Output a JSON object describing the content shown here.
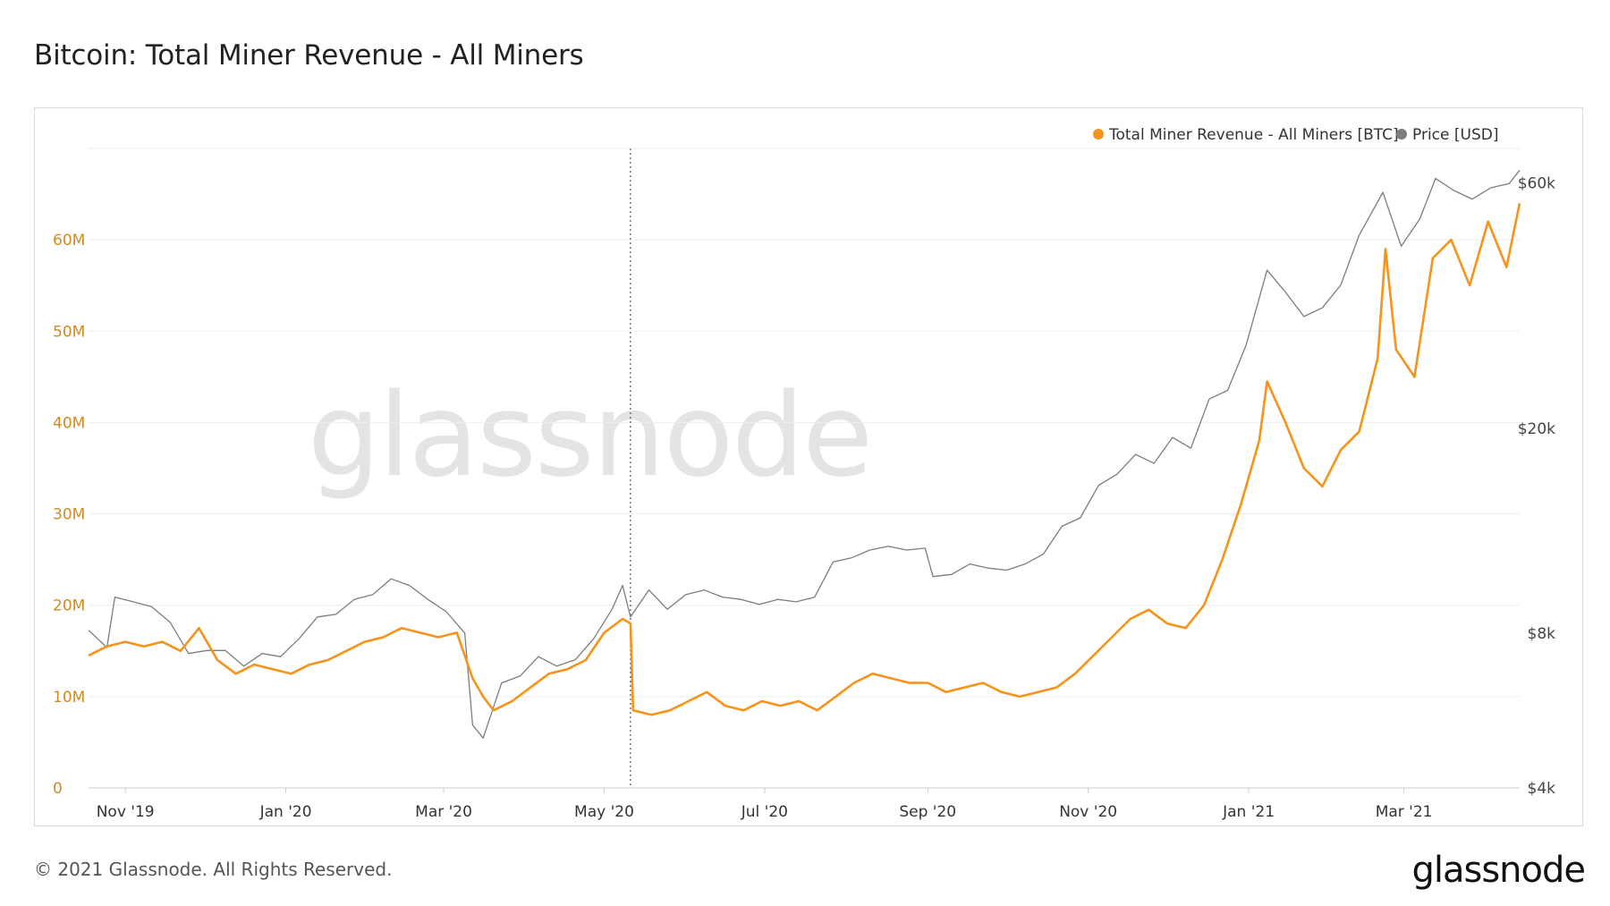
{
  "page": {
    "title": "Bitcoin: Total Miner Revenue - All Miners",
    "watermark": "glassnode",
    "footer_copyright": "© 2021 Glassnode. All Rights Reserved.",
    "footer_logo": "glassnode"
  },
  "colors": {
    "revenue": "#f7931a",
    "price": "#7d7d7d",
    "left_axis_text": "#d48a1e",
    "right_axis_text": "#444444",
    "grid": "#eeeeee",
    "watermark": "#e4e4e4"
  },
  "chart_data": {
    "type": "line",
    "title": "Bitcoin: Total Miner Revenue - All Miners",
    "legend_position": "top-right",
    "grid": true,
    "x_type": "date",
    "x_range": [
      "2019-10-18",
      "2021-04-14"
    ],
    "x_ticks": [
      {
        "date": "2019-11-01",
        "label": "Nov '19"
      },
      {
        "date": "2020-01-01",
        "label": "Jan '20"
      },
      {
        "date": "2020-03-01",
        "label": "Mar '20"
      },
      {
        "date": "2020-05-01",
        "label": "May '20"
      },
      {
        "date": "2020-07-01",
        "label": "Jul '20"
      },
      {
        "date": "2020-09-01",
        "label": "Sep '20"
      },
      {
        "date": "2020-11-01",
        "label": "Nov '20"
      },
      {
        "date": "2021-01-01",
        "label": "Jan '21"
      },
      {
        "date": "2021-03-01",
        "label": "Mar '21"
      }
    ],
    "y_left": {
      "scale": "linear",
      "range": [
        0,
        70000000
      ],
      "ticks": [
        {
          "value": 0,
          "label": "0"
        },
        {
          "value": 10000000,
          "label": "10M"
        },
        {
          "value": 20000000,
          "label": "20M"
        },
        {
          "value": 30000000,
          "label": "30M"
        },
        {
          "value": 40000000,
          "label": "40M"
        },
        {
          "value": 50000000,
          "label": "50M"
        },
        {
          "value": 60000000,
          "label": "60M"
        }
      ]
    },
    "y_right": {
      "scale": "log",
      "range": [
        4000,
        70000
      ],
      "ticks": [
        {
          "value": 4000,
          "label": "$4k"
        },
        {
          "value": 8000,
          "label": "$8k"
        },
        {
          "value": 20000,
          "label": "$20k"
        },
        {
          "value": 60000,
          "label": "$60k"
        }
      ]
    },
    "annotation": {
      "type": "vertical-dotted-line",
      "date": "2020-05-11"
    },
    "series": [
      {
        "name": "Total Miner Revenue - All Miners [BTC]",
        "axis": "left",
        "points": [
          [
            "2019-10-18",
            14500000
          ],
          [
            "2019-10-25",
            15500000
          ],
          [
            "2019-11-01",
            16000000
          ],
          [
            "2019-11-08",
            15500000
          ],
          [
            "2019-11-15",
            16000000
          ],
          [
            "2019-11-22",
            15000000
          ],
          [
            "2019-11-29",
            17500000
          ],
          [
            "2019-12-06",
            14000000
          ],
          [
            "2019-12-13",
            12500000
          ],
          [
            "2019-12-20",
            13500000
          ],
          [
            "2019-12-27",
            13000000
          ],
          [
            "2020-01-03",
            12500000
          ],
          [
            "2020-01-10",
            13500000
          ],
          [
            "2020-01-17",
            14000000
          ],
          [
            "2020-01-24",
            15000000
          ],
          [
            "2020-01-31",
            16000000
          ],
          [
            "2020-02-07",
            16500000
          ],
          [
            "2020-02-14",
            17500000
          ],
          [
            "2020-02-21",
            17000000
          ],
          [
            "2020-02-28",
            16500000
          ],
          [
            "2020-03-06",
            17000000
          ],
          [
            "2020-03-12",
            12000000
          ],
          [
            "2020-03-16",
            10000000
          ],
          [
            "2020-03-20",
            8500000
          ],
          [
            "2020-03-27",
            9500000
          ],
          [
            "2020-04-03",
            11000000
          ],
          [
            "2020-04-10",
            12500000
          ],
          [
            "2020-04-17",
            13000000
          ],
          [
            "2020-04-24",
            14000000
          ],
          [
            "2020-05-01",
            17000000
          ],
          [
            "2020-05-08",
            18500000
          ],
          [
            "2020-05-11",
            18000000
          ],
          [
            "2020-05-12",
            8500000
          ],
          [
            "2020-05-19",
            8000000
          ],
          [
            "2020-05-26",
            8500000
          ],
          [
            "2020-06-02",
            9500000
          ],
          [
            "2020-06-09",
            10500000
          ],
          [
            "2020-06-16",
            9000000
          ],
          [
            "2020-06-23",
            8500000
          ],
          [
            "2020-06-30",
            9500000
          ],
          [
            "2020-07-07",
            9000000
          ],
          [
            "2020-07-14",
            9500000
          ],
          [
            "2020-07-21",
            8500000
          ],
          [
            "2020-07-28",
            10000000
          ],
          [
            "2020-08-04",
            11500000
          ],
          [
            "2020-08-11",
            12500000
          ],
          [
            "2020-08-18",
            12000000
          ],
          [
            "2020-08-25",
            11500000
          ],
          [
            "2020-09-01",
            11500000
          ],
          [
            "2020-09-08",
            10500000
          ],
          [
            "2020-09-15",
            11000000
          ],
          [
            "2020-09-22",
            11500000
          ],
          [
            "2020-09-29",
            10500000
          ],
          [
            "2020-10-06",
            10000000
          ],
          [
            "2020-10-13",
            10500000
          ],
          [
            "2020-10-20",
            11000000
          ],
          [
            "2020-10-27",
            12500000
          ],
          [
            "2020-11-03",
            14500000
          ],
          [
            "2020-11-10",
            16500000
          ],
          [
            "2020-11-17",
            18500000
          ],
          [
            "2020-11-24",
            19500000
          ],
          [
            "2020-12-01",
            18000000
          ],
          [
            "2020-12-08",
            17500000
          ],
          [
            "2020-12-15",
            20000000
          ],
          [
            "2020-12-22",
            25000000
          ],
          [
            "2020-12-29",
            31000000
          ],
          [
            "2021-01-05",
            38000000
          ],
          [
            "2021-01-08",
            44500000
          ],
          [
            "2021-01-15",
            40000000
          ],
          [
            "2021-01-22",
            35000000
          ],
          [
            "2021-01-29",
            33000000
          ],
          [
            "2021-02-05",
            37000000
          ],
          [
            "2021-02-12",
            39000000
          ],
          [
            "2021-02-19",
            47000000
          ],
          [
            "2021-02-22",
            59000000
          ],
          [
            "2021-02-26",
            48000000
          ],
          [
            "2021-03-05",
            45000000
          ],
          [
            "2021-03-12",
            58000000
          ],
          [
            "2021-03-19",
            60000000
          ],
          [
            "2021-03-26",
            55000000
          ],
          [
            "2021-04-02",
            62000000
          ],
          [
            "2021-04-09",
            57000000
          ],
          [
            "2021-04-14",
            64000000
          ]
        ]
      },
      {
        "name": "Price [USD]",
        "axis": "right",
        "points": [
          [
            "2019-10-18",
            8100
          ],
          [
            "2019-10-25",
            7500
          ],
          [
            "2019-10-28",
            9400
          ],
          [
            "2019-11-04",
            9200
          ],
          [
            "2019-11-11",
            9000
          ],
          [
            "2019-11-18",
            8400
          ],
          [
            "2019-11-25",
            7300
          ],
          [
            "2019-12-02",
            7400
          ],
          [
            "2019-12-09",
            7400
          ],
          [
            "2019-12-16",
            6900
          ],
          [
            "2019-12-23",
            7300
          ],
          [
            "2019-12-30",
            7200
          ],
          [
            "2020-01-06",
            7800
          ],
          [
            "2020-01-13",
            8600
          ],
          [
            "2020-01-20",
            8700
          ],
          [
            "2020-01-27",
            9300
          ],
          [
            "2020-02-03",
            9500
          ],
          [
            "2020-02-10",
            10200
          ],
          [
            "2020-02-17",
            9900
          ],
          [
            "2020-02-24",
            9300
          ],
          [
            "2020-03-02",
            8800
          ],
          [
            "2020-03-09",
            8000
          ],
          [
            "2020-03-12",
            5300
          ],
          [
            "2020-03-16",
            5000
          ],
          [
            "2020-03-23",
            6400
          ],
          [
            "2020-03-30",
            6600
          ],
          [
            "2020-04-06",
            7200
          ],
          [
            "2020-04-13",
            6900
          ],
          [
            "2020-04-20",
            7100
          ],
          [
            "2020-04-27",
            7800
          ],
          [
            "2020-05-04",
            8900
          ],
          [
            "2020-05-08",
            9900
          ],
          [
            "2020-05-11",
            8600
          ],
          [
            "2020-05-18",
            9700
          ],
          [
            "2020-05-25",
            8900
          ],
          [
            "2020-06-01",
            9500
          ],
          [
            "2020-06-08",
            9700
          ],
          [
            "2020-06-15",
            9400
          ],
          [
            "2020-06-22",
            9300
          ],
          [
            "2020-06-29",
            9100
          ],
          [
            "2020-07-06",
            9300
          ],
          [
            "2020-07-13",
            9200
          ],
          [
            "2020-07-20",
            9400
          ],
          [
            "2020-07-27",
            11000
          ],
          [
            "2020-08-03",
            11200
          ],
          [
            "2020-08-10",
            11600
          ],
          [
            "2020-08-17",
            11800
          ],
          [
            "2020-08-24",
            11600
          ],
          [
            "2020-08-31",
            11700
          ],
          [
            "2020-09-03",
            10300
          ],
          [
            "2020-09-10",
            10400
          ],
          [
            "2020-09-17",
            10900
          ],
          [
            "2020-09-24",
            10700
          ],
          [
            "2020-10-01",
            10600
          ],
          [
            "2020-10-08",
            10900
          ],
          [
            "2020-10-15",
            11400
          ],
          [
            "2020-10-22",
            12900
          ],
          [
            "2020-10-29",
            13400
          ],
          [
            "2020-11-05",
            15500
          ],
          [
            "2020-11-12",
            16300
          ],
          [
            "2020-11-19",
            17800
          ],
          [
            "2020-11-26",
            17100
          ],
          [
            "2020-12-03",
            19200
          ],
          [
            "2020-12-10",
            18300
          ],
          [
            "2020-12-17",
            22800
          ],
          [
            "2020-12-24",
            23700
          ],
          [
            "2020-12-31",
            29000
          ],
          [
            "2021-01-08",
            40600
          ],
          [
            "2021-01-15",
            36800
          ],
          [
            "2021-01-22",
            33000
          ],
          [
            "2021-01-29",
            34300
          ],
          [
            "2021-02-05",
            38000
          ],
          [
            "2021-02-12",
            47500
          ],
          [
            "2021-02-21",
            57500
          ],
          [
            "2021-02-28",
            45200
          ],
          [
            "2021-03-07",
            51000
          ],
          [
            "2021-03-13",
            61200
          ],
          [
            "2021-03-20",
            58000
          ],
          [
            "2021-03-27",
            55800
          ],
          [
            "2021-04-03",
            58700
          ],
          [
            "2021-04-10",
            59800
          ],
          [
            "2021-04-14",
            63500
          ]
        ]
      }
    ]
  }
}
